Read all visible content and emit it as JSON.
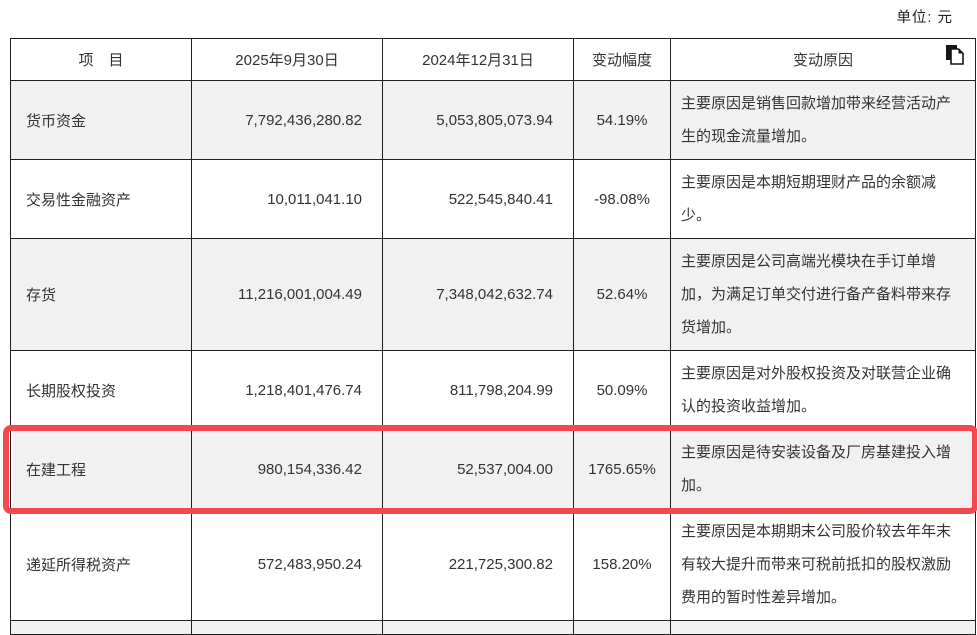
{
  "unit_label": "单位: 元",
  "colors": {
    "highlight_border": "#f4474f",
    "row_stripe": "#f1f1f1",
    "table_border": "#1f1f1f"
  },
  "icons": {
    "copy": "copy-icon"
  },
  "table": {
    "headers": {
      "item": "项　目",
      "date_current": "2025年9月30日",
      "date_prior": "2024年12月31日",
      "change": "变动幅度",
      "reason": "变动原因"
    },
    "rows": [
      {
        "item": "货币资金",
        "current": "7,792,436,280.82",
        "prior": "5,053,805,073.94",
        "change": "54.19%",
        "reason": "主要原因是销售回款增加带来经营活动产生的现金流量增加。",
        "highlighted": false
      },
      {
        "item": "交易性金融资产",
        "current": "10,011,041.10",
        "prior": "522,545,840.41",
        "change": "-98.08%",
        "reason": "主要原因是本期短期理财产品的余额减少。",
        "highlighted": false
      },
      {
        "item": "存货",
        "current": "11,216,001,004.49",
        "prior": "7,348,042,632.74",
        "change": "52.64%",
        "reason": "主要原因是公司高端光模块在手订单增加，为满足订单交付进行备产备料带来存货增加。",
        "highlighted": false
      },
      {
        "item": "长期股权投资",
        "current": "1,218,401,476.74",
        "prior": "811,798,204.99",
        "change": "50.09%",
        "reason": "主要原因是对外股权投资及对联营企业确认的投资收益增加。",
        "highlighted": false
      },
      {
        "item": "在建工程",
        "current": "980,154,336.42",
        "prior": "52,537,004.00",
        "change": "1765.65%",
        "reason": "主要原因是待安装设备及厂房基建投入增加。",
        "highlighted": true
      },
      {
        "item": "递延所得税资产",
        "current": "572,483,950.24",
        "prior": "221,725,300.82",
        "change": "158.20%",
        "reason": "主要原因是本期期末公司股价较去年年末有较大提升而带来可税前抵扣的股权激励费用的暂时性差异增加。",
        "highlighted": false
      }
    ]
  }
}
